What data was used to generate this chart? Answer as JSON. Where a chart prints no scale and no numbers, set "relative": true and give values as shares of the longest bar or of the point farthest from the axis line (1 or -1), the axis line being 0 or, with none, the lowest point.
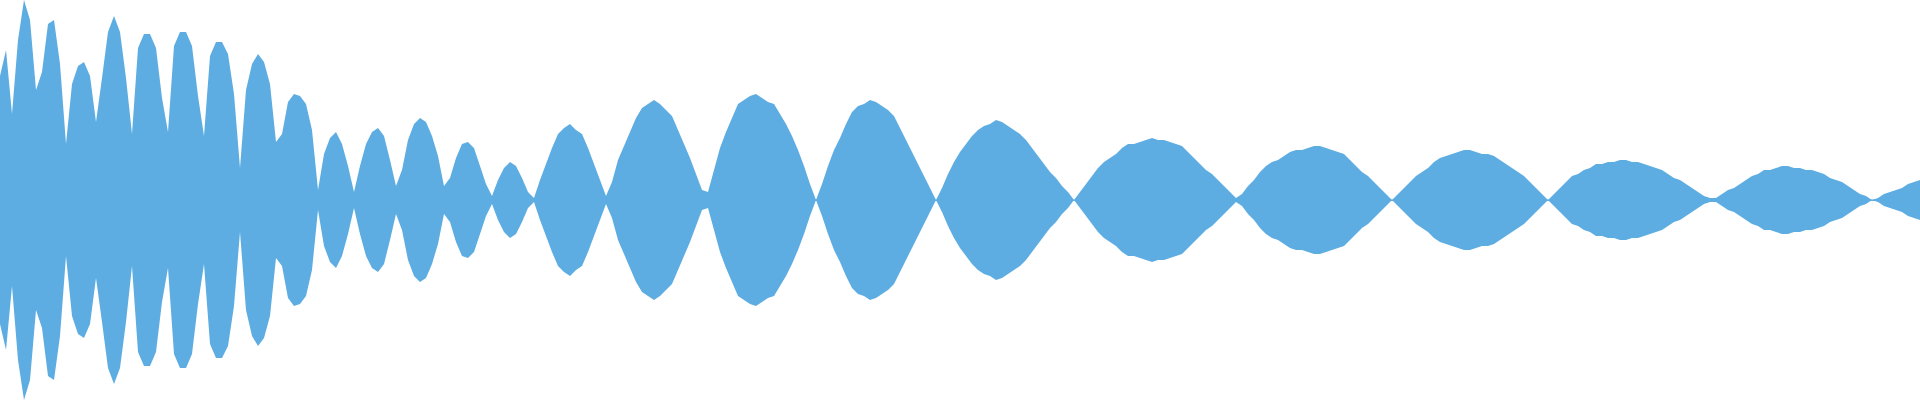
{
  "chart_data": {
    "type": "area",
    "relative": true,
    "categories": [
      null,
      null,
      null,
      null,
      null,
      null,
      null,
      null,
      null,
      null,
      null,
      null,
      null,
      null,
      null,
      null,
      null,
      null,
      null,
      null,
      null,
      null,
      null,
      null,
      null,
      null,
      null,
      null,
      null,
      null,
      null,
      null,
      null,
      null,
      null,
      null,
      null,
      null,
      null,
      null,
      null,
      null,
      null,
      null,
      null,
      null,
      null,
      null,
      null,
      null,
      null,
      null,
      null,
      null,
      null,
      null,
      null,
      null,
      null,
      null,
      null,
      null,
      null,
      null,
      null,
      null,
      null,
      null,
      null,
      null,
      null,
      null,
      null,
      null,
      null,
      null,
      null,
      null,
      null,
      null,
      null,
      null,
      null,
      null,
      null,
      null,
      null,
      null,
      null,
      null,
      null,
      null,
      null,
      null,
      null,
      null,
      null,
      null,
      null,
      null,
      null,
      null,
      null,
      null,
      null,
      null,
      null,
      null,
      null,
      null,
      null,
      null,
      null,
      null,
      null,
      null,
      null,
      null,
      null,
      null,
      null,
      null,
      null,
      null,
      null,
      null,
      null,
      null,
      null,
      null,
      null,
      null,
      null,
      null,
      null,
      null,
      null,
      null,
      null,
      null,
      null,
      null,
      null,
      null,
      null,
      null,
      null,
      null,
      null,
      null,
      null,
      null,
      null,
      null,
      null,
      null,
      null,
      null,
      null,
      null,
      null,
      null,
      null,
      null,
      null,
      null,
      null,
      null,
      null,
      null,
      null,
      null,
      null,
      null,
      null,
      null,
      null,
      null,
      null,
      null,
      null,
      null,
      null,
      null,
      null,
      null,
      null,
      null,
      null,
      null,
      null,
      null,
      null,
      null,
      null,
      null,
      null,
      null,
      null,
      null,
      null,
      null,
      null,
      null,
      null,
      null,
      null,
      null,
      null,
      null,
      null,
      null,
      null,
      null,
      null,
      null,
      null,
      null,
      null,
      null,
      null,
      null,
      null,
      null,
      null,
      null,
      null,
      null,
      null,
      null,
      null,
      null,
      null,
      null,
      null,
      null,
      null,
      null,
      null,
      null,
      null,
      null,
      null,
      null,
      null,
      null,
      null,
      null,
      null,
      null,
      null,
      null,
      null,
      null,
      null,
      null,
      null,
      null,
      null,
      null,
      null,
      null,
      null,
      null,
      null,
      null,
      null,
      null,
      null,
      null,
      null,
      null,
      null,
      null,
      null,
      null,
      null,
      null,
      null,
      null,
      null,
      null,
      null,
      null,
      null,
      null,
      null,
      null,
      null,
      null,
      null,
      null,
      null,
      null,
      null,
      null,
      null,
      null,
      null,
      null,
      null,
      null,
      null,
      null,
      null,
      null,
      null,
      null,
      null,
      null,
      null,
      null,
      null,
      null,
      null,
      null,
      null,
      null,
      null,
      null,
      null
    ],
    "series": [
      {
        "color": "#5dade2",
        "values": [
          0.62,
          0.75,
          0.43,
          0.8,
          1,
          0.9,
          0.55,
          0.64,
          0.88,
          0.9,
          0.68,
          0.28,
          0.58,
          0.67,
          0.69,
          0.62,
          0.39,
          0.61,
          0.84,
          0.92,
          0.84,
          0.61,
          0.33,
          0.76,
          0.83,
          0.83,
          0.76,
          0.51,
          0.34,
          0.77,
          0.84,
          0.84,
          0.77,
          0.52,
          0.32,
          0.72,
          0.79,
          0.79,
          0.73,
          0.53,
          0.16,
          0.55,
          0.68,
          0.73,
          0.69,
          0.58,
          0.29,
          0.33,
          0.49,
          0.53,
          0.52,
          0.48,
          0.35,
          0.05,
          0.23,
          0.31,
          0.34,
          0.28,
          0.17,
          0.04,
          0.17,
          0.28,
          0.34,
          0.36,
          0.32,
          0.2,
          0.07,
          0.15,
          0.3,
          0.38,
          0.41,
          0.39,
          0.32,
          0.22,
          0.07,
          0.11,
          0.21,
          0.28,
          0.29,
          0.26,
          0.17,
          0.08,
          0.02,
          0.1,
          0.16,
          0.19,
          0.17,
          0.11,
          0.04,
          0.01,
          0.1,
          0.18,
          0.26,
          0.33,
          0.36,
          0.38,
          0.35,
          0.33,
          0.26,
          0.18,
          0.1,
          0.02,
          0.09,
          0.2,
          0.27,
          0.34,
          0.41,
          0.46,
          0.48,
          0.5,
          0.48,
          0.45,
          0.42,
          0.35,
          0.28,
          0.21,
          0.13,
          0.05,
          0.04,
          0.15,
          0.26,
          0.34,
          0.41,
          0.48,
          0.5,
          0.52,
          0.53,
          0.51,
          0.49,
          0.48,
          0.43,
          0.38,
          0.32,
          0.25,
          0.17,
          0.08,
          0,
          0.08,
          0.17,
          0.25,
          0.31,
          0.38,
          0.44,
          0.47,
          0.48,
          0.5,
          0.49,
          0.47,
          0.45,
          0.42,
          0.36,
          0.3,
          0.24,
          0.18,
          0.12,
          0.06,
          0,
          0.06,
          0.13,
          0.19,
          0.24,
          0.28,
          0.32,
          0.35,
          0.37,
          0.38,
          0.4,
          0.39,
          0.37,
          0.35,
          0.33,
          0.3,
          0.26,
          0.22,
          0.18,
          0.14,
          0.11,
          0.07,
          0.04,
          0,
          0.04,
          0.08,
          0.12,
          0.16,
          0.19,
          0.21,
          0.23,
          0.26,
          0.28,
          0.28,
          0.29,
          0.3,
          0.31,
          0.3,
          0.3,
          0.29,
          0.28,
          0.27,
          0.24,
          0.21,
          0.18,
          0.15,
          0.13,
          0.1,
          0.07,
          0.04,
          0.01,
          0.03,
          0.07,
          0.1,
          0.14,
          0.17,
          0.19,
          0.2,
          0.22,
          0.24,
          0.25,
          0.25,
          0.26,
          0.27,
          0.27,
          0.26,
          0.25,
          0.24,
          0.23,
          0.2,
          0.17,
          0.14,
          0.12,
          0.09,
          0.06,
          0.03,
          0,
          0.03,
          0.06,
          0.09,
          0.12,
          0.14,
          0.16,
          0.19,
          0.21,
          0.22,
          0.23,
          0.24,
          0.25,
          0.25,
          0.24,
          0.23,
          0.23,
          0.22,
          0.2,
          0.18,
          0.16,
          0.14,
          0.12,
          0.09,
          0.06,
          0.03,
          0,
          0.03,
          0.06,
          0.09,
          0.12,
          0.13,
          0.15,
          0.16,
          0.18,
          0.18,
          0.19,
          0.19,
          0.2,
          0.2,
          0.19,
          0.19,
          0.18,
          0.17,
          0.16,
          0.15,
          0.13,
          0.11,
          0.1,
          0.08,
          0.06,
          0.04,
          0.02,
          0.01,
          0.01,
          0.03,
          0.05,
          0.06,
          0.08,
          0.1,
          0.12,
          0.13,
          0.15,
          0.15,
          0.16,
          0.17,
          0.17,
          0.16,
          0.16,
          0.15,
          0.15,
          0.14,
          0.13,
          0.11,
          0.1,
          0.09,
          0.07,
          0.05,
          0.03,
          0.02,
          0,
          0.01,
          0.03,
          0.04,
          0.05,
          0.06,
          0.08,
          0.09,
          0.1
        ]
      },
      {
        "color": "#5dade2",
        "values": [
          -0.62,
          -0.75,
          -0.43,
          -0.8,
          -1,
          -0.9,
          -0.55,
          -0.64,
          -0.88,
          -0.9,
          -0.68,
          -0.28,
          -0.58,
          -0.67,
          -0.69,
          -0.62,
          -0.39,
          -0.61,
          -0.84,
          -0.92,
          -0.84,
          -0.61,
          -0.33,
          -0.76,
          -0.83,
          -0.83,
          -0.76,
          -0.51,
          -0.34,
          -0.77,
          -0.84,
          -0.84,
          -0.77,
          -0.52,
          -0.32,
          -0.72,
          -0.79,
          -0.79,
          -0.73,
          -0.53,
          -0.16,
          -0.55,
          -0.68,
          -0.73,
          -0.69,
          -0.58,
          -0.29,
          -0.33,
          -0.49,
          -0.53,
          -0.52,
          -0.48,
          -0.35,
          -0.05,
          -0.23,
          -0.31,
          -0.34,
          -0.28,
          -0.17,
          -0.04,
          -0.17,
          -0.28,
          -0.34,
          -0.36,
          -0.32,
          -0.2,
          -0.07,
          -0.15,
          -0.3,
          -0.38,
          -0.41,
          -0.39,
          -0.32,
          -0.22,
          -0.07,
          -0.11,
          -0.21,
          -0.28,
          -0.29,
          -0.26,
          -0.17,
          -0.08,
          -0.02,
          -0.1,
          -0.16,
          -0.19,
          -0.17,
          -0.11,
          -0.04,
          -0.01,
          -0.1,
          -0.18,
          -0.26,
          -0.33,
          -0.36,
          -0.38,
          -0.35,
          -0.33,
          -0.26,
          -0.18,
          -0.1,
          -0.02,
          -0.09,
          -0.2,
          -0.27,
          -0.34,
          -0.41,
          -0.46,
          -0.48,
          -0.5,
          -0.48,
          -0.45,
          -0.42,
          -0.35,
          -0.28,
          -0.21,
          -0.13,
          -0.05,
          -0.04,
          -0.15,
          -0.26,
          -0.34,
          -0.41,
          -0.48,
          -0.5,
          -0.52,
          -0.53,
          -0.51,
          -0.49,
          -0.48,
          -0.43,
          -0.38,
          -0.32,
          -0.25,
          -0.17,
          -0.08,
          0,
          -0.08,
          -0.17,
          -0.25,
          -0.31,
          -0.38,
          -0.44,
          -0.47,
          -0.48,
          -0.5,
          -0.49,
          -0.47,
          -0.45,
          -0.42,
          -0.36,
          -0.3,
          -0.24,
          -0.18,
          -0.12,
          -0.06,
          0,
          -0.06,
          -0.13,
          -0.19,
          -0.24,
          -0.28,
          -0.32,
          -0.35,
          -0.37,
          -0.38,
          -0.4,
          -0.39,
          -0.37,
          -0.35,
          -0.33,
          -0.3,
          -0.26,
          -0.22,
          -0.18,
          -0.14,
          -0.11,
          -0.07,
          -0.04,
          0,
          -0.04,
          -0.08,
          -0.12,
          -0.16,
          -0.19,
          -0.21,
          -0.23,
          -0.26,
          -0.28,
          -0.28,
          -0.29,
          -0.3,
          -0.31,
          -0.3,
          -0.3,
          -0.29,
          -0.28,
          -0.27,
          -0.24,
          -0.21,
          -0.18,
          -0.15,
          -0.13,
          -0.1,
          -0.07,
          -0.04,
          -0.01,
          -0.03,
          -0.07,
          -0.1,
          -0.14,
          -0.17,
          -0.19,
          -0.2,
          -0.22,
          -0.24,
          -0.25,
          -0.25,
          -0.26,
          -0.27,
          -0.27,
          -0.26,
          -0.25,
          -0.24,
          -0.23,
          -0.2,
          -0.17,
          -0.14,
          -0.12,
          -0.09,
          -0.06,
          -0.03,
          0,
          -0.03,
          -0.06,
          -0.09,
          -0.12,
          -0.14,
          -0.16,
          -0.19,
          -0.21,
          -0.22,
          -0.23,
          -0.24,
          -0.25,
          -0.25,
          -0.24,
          -0.23,
          -0.23,
          -0.22,
          -0.2,
          -0.18,
          -0.16,
          -0.14,
          -0.12,
          -0.09,
          -0.06,
          -0.03,
          0,
          -0.03,
          -0.06,
          -0.09,
          -0.12,
          -0.13,
          -0.15,
          -0.16,
          -0.18,
          -0.18,
          -0.19,
          -0.19,
          -0.2,
          -0.2,
          -0.19,
          -0.19,
          -0.18,
          -0.17,
          -0.16,
          -0.15,
          -0.13,
          -0.11,
          -0.1,
          -0.08,
          -0.06,
          -0.04,
          -0.02,
          -0.01,
          -0.01,
          -0.03,
          -0.05,
          -0.06,
          -0.08,
          -0.1,
          -0.12,
          -0.13,
          -0.15,
          -0.15,
          -0.16,
          -0.17,
          -0.17,
          -0.16,
          -0.16,
          -0.15,
          -0.15,
          -0.14,
          -0.13,
          -0.11,
          -0.1,
          -0.09,
          -0.07,
          -0.05,
          -0.03,
          -0.02,
          0,
          -0.01,
          -0.03,
          -0.04,
          -0.05,
          -0.06,
          -0.08,
          -0.09,
          -0.1
        ]
      }
    ],
    "ref_lines": [
      {
        "axis": "y",
        "value": 0,
        "color": "#5dade2"
      }
    ]
  }
}
